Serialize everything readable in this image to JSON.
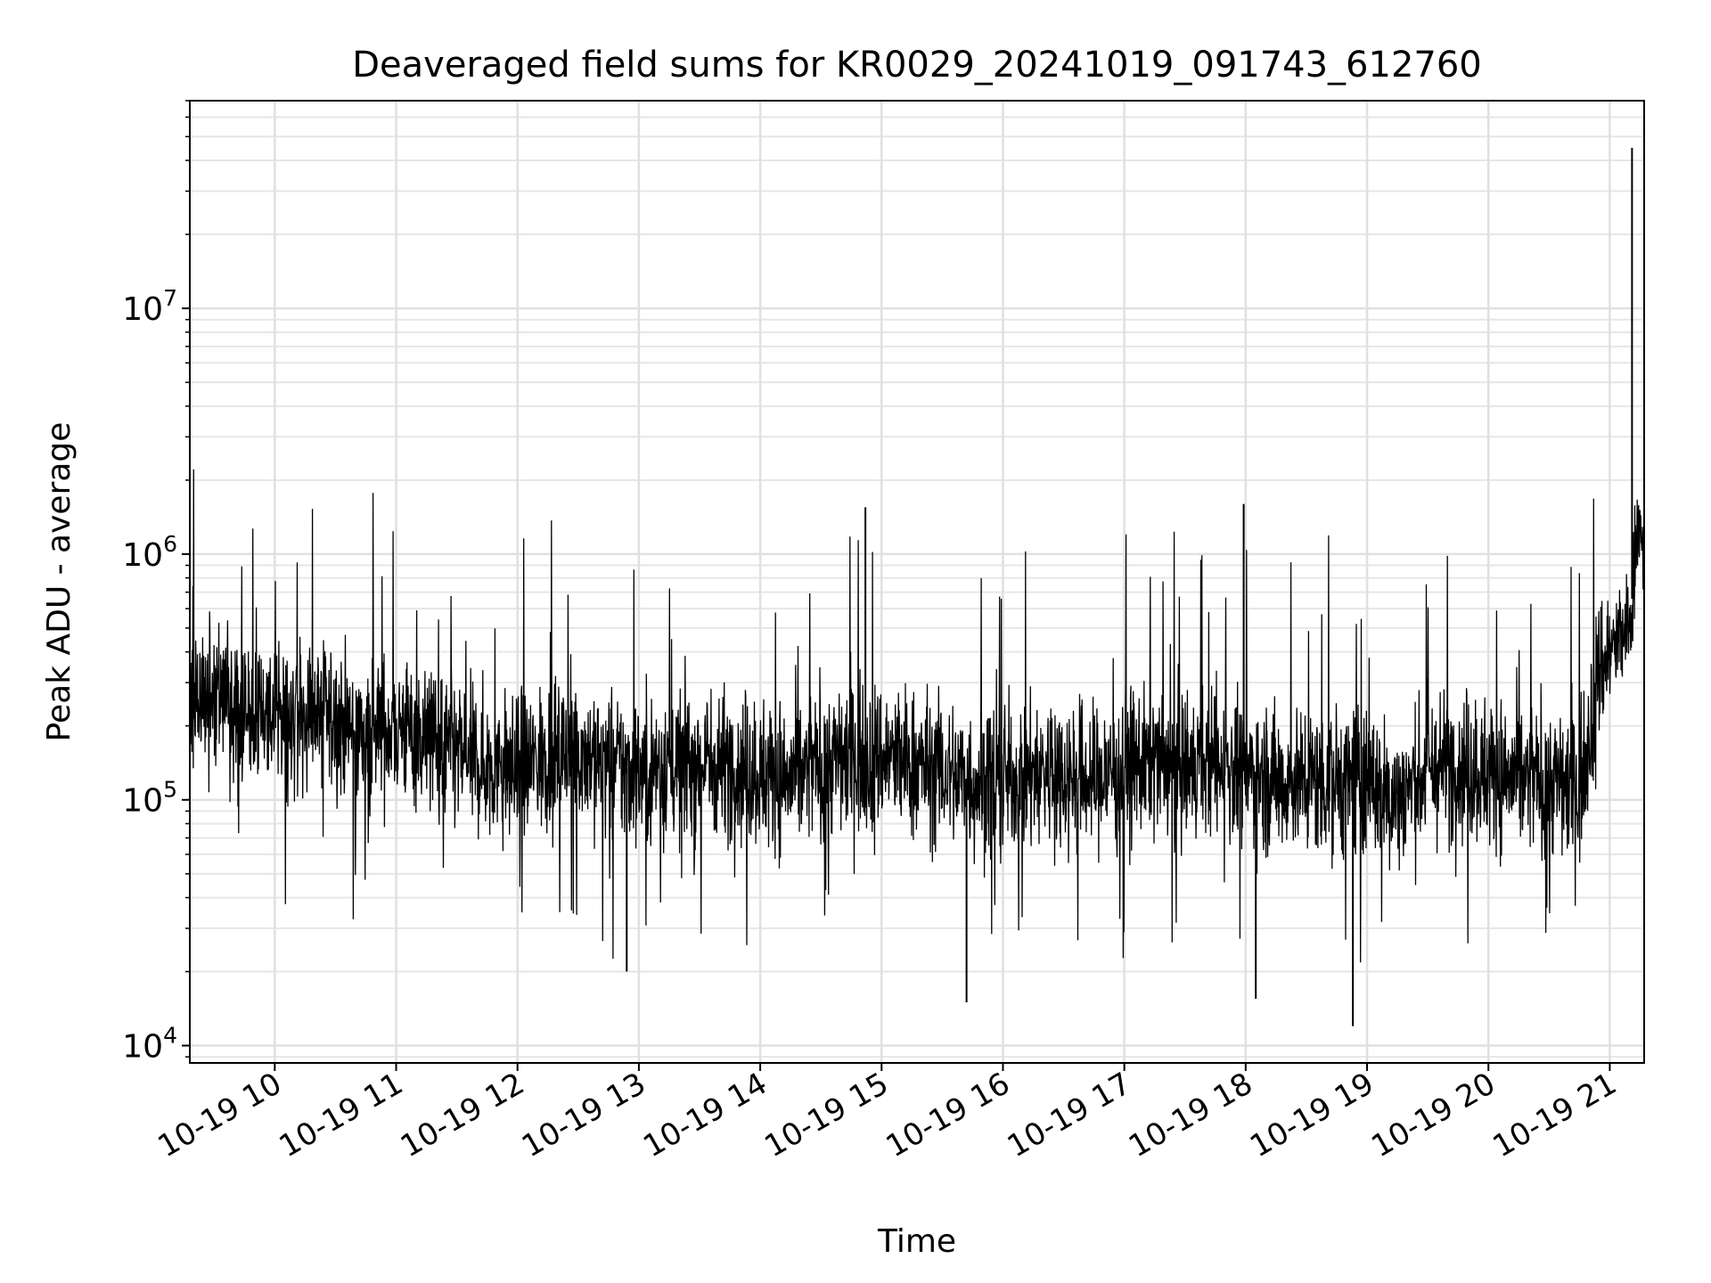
{
  "chart_data": {
    "type": "line",
    "title": "Deaveraged field sums for KR0029_20241019_091743_612760",
    "xlabel": "Time",
    "ylabel": "Peak ADU - average",
    "y_scale": "log",
    "x_axis_type": "datetime",
    "xlim": [
      "2024-10-19 09:18",
      "2024-10-19 21:17"
    ],
    "ylim": [
      8500,
      70000000
    ],
    "x_ticks": [
      "2024-10-19 10:00",
      "2024-10-19 11:00",
      "2024-10-19 12:00",
      "2024-10-19 13:00",
      "2024-10-19 14:00",
      "2024-10-19 15:00",
      "2024-10-19 16:00",
      "2024-10-19 17:00",
      "2024-10-19 18:00",
      "2024-10-19 19:00",
      "2024-10-19 20:00",
      "2024-10-19 21:00"
    ],
    "x_tick_labels": [
      "10-19 10",
      "10-19 11",
      "10-19 12",
      "10-19 13",
      "10-19 14",
      "10-19 15",
      "10-19 16",
      "10-19 17",
      "10-19 18",
      "10-19 19",
      "10-19 20",
      "10-19 21"
    ],
    "y_ticks": [
      10000,
      100000,
      1000000,
      10000000
    ],
    "y_tick_labels": [
      {
        "base": "10",
        "exp": "4"
      },
      {
        "base": "10",
        "exp": "5"
      },
      {
        "base": "10",
        "exp": "6"
      },
      {
        "base": "10",
        "exp": "7"
      }
    ],
    "grid": true,
    "grid_minor": true,
    "series": [
      {
        "color": "#000000",
        "x": [
          "2024-10-19 09:18",
          "2024-10-19 09:30",
          "2024-10-19 09:45",
          "2024-10-19 10:00",
          "2024-10-19 10:15",
          "2024-10-19 10:30",
          "2024-10-19 10:45",
          "2024-10-19 11:00",
          "2024-10-19 11:15",
          "2024-10-19 11:30",
          "2024-10-19 11:45",
          "2024-10-19 12:00",
          "2024-10-19 12:15",
          "2024-10-19 12:30",
          "2024-10-19 12:45",
          "2024-10-19 13:00",
          "2024-10-19 13:15",
          "2024-10-19 13:30",
          "2024-10-19 13:45",
          "2024-10-19 14:00",
          "2024-10-19 14:15",
          "2024-10-19 14:30",
          "2024-10-19 14:45",
          "2024-10-19 15:00",
          "2024-10-19 15:15",
          "2024-10-19 15:30",
          "2024-10-19 15:45",
          "2024-10-19 16:00",
          "2024-10-19 16:15",
          "2024-10-19 16:30",
          "2024-10-19 16:45",
          "2024-10-19 17:00",
          "2024-10-19 17:15",
          "2024-10-19 17:30",
          "2024-10-19 17:45",
          "2024-10-19 18:00",
          "2024-10-19 18:15",
          "2024-10-19 18:30",
          "2024-10-19 18:45",
          "2024-10-19 19:00",
          "2024-10-19 19:15",
          "2024-10-19 19:30",
          "2024-10-19 19:45",
          "2024-10-19 20:00",
          "2024-10-19 20:15",
          "2024-10-19 20:30",
          "2024-10-19 20:45",
          "2024-10-19 20:55",
          "2024-10-19 21:05",
          "2024-10-19 21:10",
          "2024-10-19 21:14",
          "2024-10-19 21:17"
        ],
        "y": [
          250000,
          280000,
          230000,
          220000,
          230000,
          210000,
          180000,
          200000,
          180000,
          150000,
          140000,
          130000,
          150000,
          160000,
          140000,
          130000,
          140000,
          140000,
          140000,
          130000,
          120000,
          140000,
          150000,
          150000,
          140000,
          130000,
          120000,
          120000,
          130000,
          130000,
          120000,
          140000,
          140000,
          130000,
          140000,
          130000,
          120000,
          120000,
          120000,
          120000,
          100000,
          130000,
          140000,
          130000,
          120000,
          120000,
          110000,
          350000,
          450000,
          500000,
          1500000,
          800000
        ]
      }
    ],
    "extremes": [
      {
        "x": "2024-10-19 21:11",
        "y": 45000000
      },
      {
        "x": "2024-10-19 18:53",
        "y": 12000
      },
      {
        "x": "2024-10-19 15:42",
        "y": 15000
      },
      {
        "x": "2024-10-19 12:54",
        "y": 20000
      },
      {
        "x": "2024-10-19 14:52",
        "y": 1550000
      },
      {
        "x": "2024-10-19 17:59",
        "y": 1600000
      },
      {
        "x": "2024-10-19 18:05",
        "y": 15500
      }
    ]
  }
}
